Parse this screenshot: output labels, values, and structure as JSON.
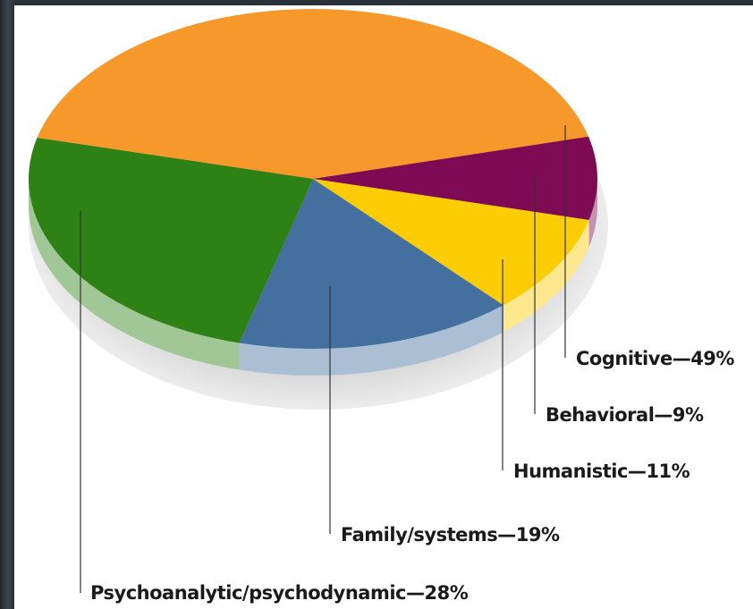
{
  "chart_data": {
    "type": "pie",
    "title": "",
    "slices": [
      {
        "label": "Cognitive—49%",
        "category": "Cognitive",
        "value": 49,
        "color": "#f7982b"
      },
      {
        "label": "Behavioral—9%",
        "category": "Behavioral",
        "value": 9,
        "color": "#7d0a52"
      },
      {
        "label": "Humanistic—11%",
        "category": "Humanistic",
        "value": 11,
        "color": "#fccc04"
      },
      {
        "label": "Family/systems—19%",
        "category": "Family/systems",
        "value": 19,
        "color": "#43709f"
      },
      {
        "label": "Psychoanalytic/psychodynamic—28%",
        "category": "Psychoanalytic/psychodynamic",
        "value": 28,
        "color": "#2e8215"
      }
    ],
    "unit": "%",
    "style": "3d-tilted"
  }
}
